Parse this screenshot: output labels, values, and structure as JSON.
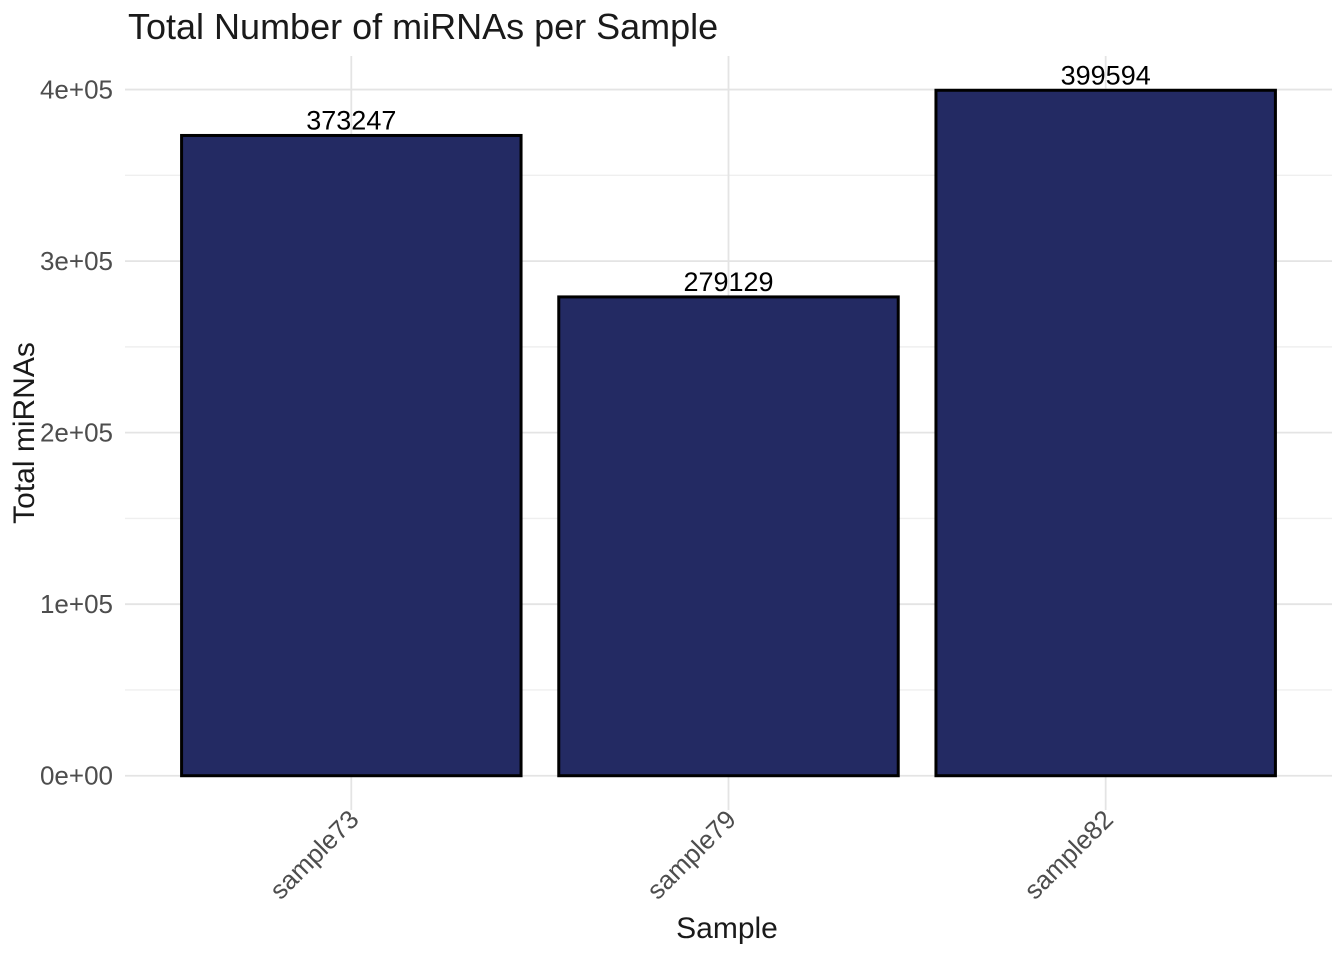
{
  "chart_data": {
    "type": "bar",
    "title": "Total Number of miRNAs per Sample",
    "xlabel": "Sample",
    "ylabel": "Total miRNAs",
    "categories": [
      "sample73",
      "sample79",
      "sample82"
    ],
    "values": [
      373247,
      279129,
      399594
    ],
    "bar_labels": [
      "373247",
      "279129",
      "399594"
    ],
    "y_axis": {
      "range": [
        -19980,
        419574
      ],
      "ticks": [
        {
          "value": 0,
          "label": "0e+00"
        },
        {
          "value": 100000,
          "label": "1e+05"
        },
        {
          "value": 200000,
          "label": "2e+05"
        },
        {
          "value": 300000,
          "label": "3e+05"
        },
        {
          "value": 400000,
          "label": "4e+05"
        }
      ],
      "minor_ticks": [
        50000,
        150000,
        250000,
        350000
      ]
    },
    "grid": "major-and-minor-horizontal, major-vertical-at-categories",
    "legend": "none",
    "x_tick_angle_deg": 45,
    "colors": {
      "bar_fill": "#232A63",
      "bar_stroke": "#000000",
      "grid_major": "#E4E4E4",
      "grid_minor": "#EFEFEF",
      "tick_label": "#4D4D4D",
      "title_text": "#1A1A1A",
      "bar_value_label": "#000000",
      "background": "#FFFFFF"
    }
  }
}
